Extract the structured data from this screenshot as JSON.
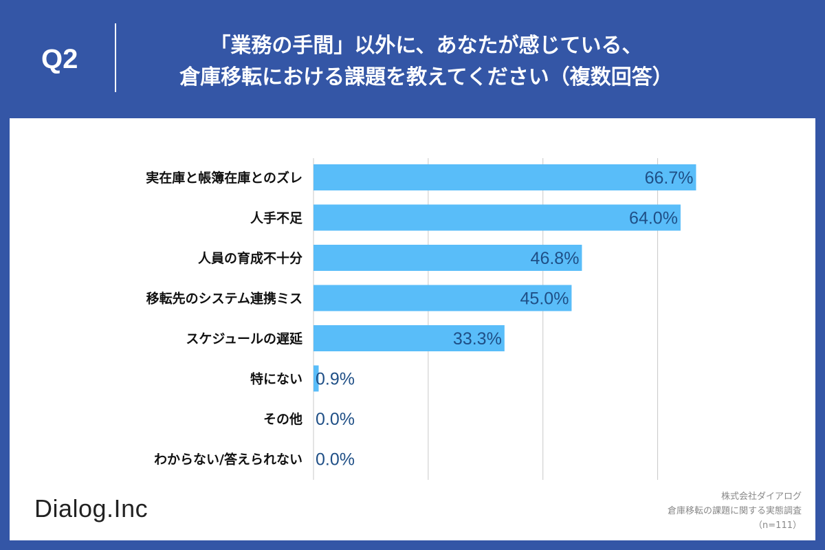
{
  "header": {
    "question_number": "Q2",
    "question_line1": "「業務の手間」以外に、あなたが感じている、",
    "question_line2": "倉庫移転における課題を教えてください（複数回答）"
  },
  "footer": {
    "logo_text": "Dialog.Inc",
    "source_line1": "株式会社ダイアログ",
    "source_line2": "倉庫移転の課題に関する実態調査",
    "source_line3": "（n=111）"
  },
  "colors": {
    "header_bg": "#3456a6",
    "panel_bg": "#ffffff",
    "bar": "#59bdf9",
    "value_text": "#1f4f86",
    "gridline": "#c8c8c8"
  },
  "chart_data": {
    "type": "bar",
    "orientation": "horizontal",
    "categories": [
      "実在庫と帳簿在庫とのズレ",
      "人手不足",
      "人員の育成不十分",
      "移転先のシステム連携ミス",
      "スケジュールの遅延",
      "特にない",
      "その他",
      "わからない/答えられない"
    ],
    "values": [
      66.7,
      64.0,
      46.8,
      45.0,
      33.3,
      0.9,
      0.0,
      0.0
    ],
    "value_labels": [
      "66.7%",
      "64.0%",
      "46.8%",
      "45.0%",
      "33.3%",
      "0.9%",
      "0.0%",
      "0.0%"
    ],
    "xlim": [
      0,
      70
    ],
    "grid": true,
    "legend": "none"
  }
}
